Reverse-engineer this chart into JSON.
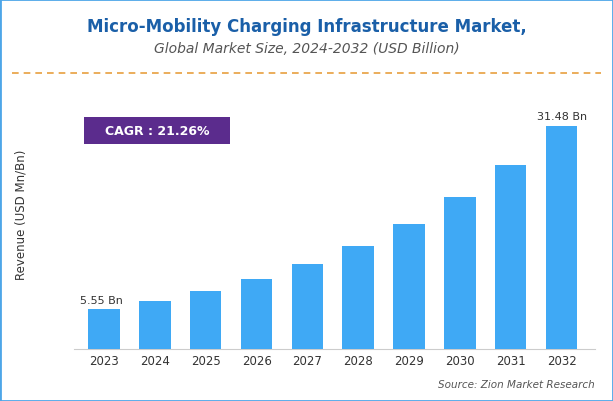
{
  "title_line1": "Micro-Mobility Charging Infrastructure Market,",
  "title_line2": "Global Market Size, 2024-2032 (USD Billion)",
  "years": [
    2023,
    2024,
    2025,
    2026,
    2027,
    2028,
    2029,
    2030,
    2031,
    2032
  ],
  "values": [
    5.55,
    6.73,
    8.16,
    9.89,
    11.99,
    14.54,
    17.63,
    21.37,
    25.91,
    31.48
  ],
  "bar_color": "#3FA9F5",
  "bar_edge_color": "none",
  "ylabel": "Revenue (USD Mn/Bn)",
  "cagr_text": "CAGR : 21.26%",
  "cagr_box_color": "#5B2C8D",
  "cagr_text_color": "#FFFFFF",
  "first_bar_label": "5.55 Bn",
  "last_bar_label": "31.48 Bn",
  "source_text": "Source: Zion Market Research",
  "dashed_line_color": "#E8A040",
  "background_color": "#FFFFFF",
  "border_color": "#4DA6E8",
  "title_color": "#1A5FA8",
  "subtitle_color": "#555555",
  "ylim": [
    0,
    38
  ],
  "title_fontsize": 12,
  "subtitle_fontsize": 10,
  "axis_label_fontsize": 8.5,
  "tick_fontsize": 8.5,
  "bar_annotation_fontsize": 8
}
